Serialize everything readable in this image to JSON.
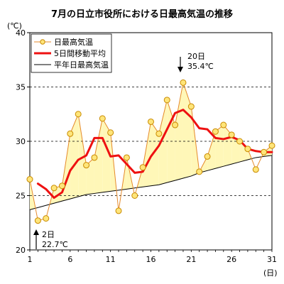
{
  "chart_data": {
    "type": "line",
    "title": "7月の日立市役所における日最高気温の推移",
    "ylabel": "(℃)",
    "xlabel": "(日)",
    "ylim": [
      20,
      40
    ],
    "xlim": [
      1,
      31
    ],
    "yticks": [
      20,
      25,
      30,
      35,
      40
    ],
    "xticks": [
      1,
      6,
      11,
      16,
      21,
      26,
      31
    ],
    "gridlines": "dashed horizontal at 25, 30, 35",
    "legend_position": "top-left",
    "colors": {
      "daily_line": "#e58a2b",
      "daily_marker_fill": "#ffe57a",
      "daily_marker_edge": "#c88a00",
      "moving_avg": "#ee1111",
      "normal": "#000000",
      "fill": "#fff7b8"
    },
    "x": [
      1,
      2,
      3,
      4,
      5,
      6,
      7,
      8,
      9,
      10,
      11,
      12,
      13,
      14,
      15,
      16,
      17,
      18,
      19,
      20,
      21,
      22,
      23,
      24,
      25,
      26,
      27,
      28,
      29,
      30,
      31
    ],
    "series": [
      {
        "name": "日最高気温",
        "values": [
          26.5,
          22.7,
          22.9,
          25.7,
          25.9,
          30.7,
          32.5,
          27.8,
          28.5,
          32.1,
          30.8,
          23.6,
          28.5,
          25.0,
          27.6,
          31.8,
          30.7,
          33.8,
          31.5,
          35.4,
          33.2,
          27.2,
          28.6,
          30.9,
          31.5,
          30.6,
          30.0,
          29.3,
          27.4,
          29.0,
          29.6
        ]
      },
      {
        "name": "5日間移動平均",
        "values": [
          null,
          26.1,
          25.6,
          24.8,
          25.3,
          27.3,
          28.3,
          28.7,
          30.3,
          30.3,
          28.6,
          28.7,
          27.9,
          27.1,
          27.2,
          28.6,
          29.6,
          31.1,
          32.6,
          32.9,
          32.2,
          31.2,
          31.1,
          30.3,
          30.2,
          30.4,
          30.1,
          29.3,
          29.1,
          29.0,
          29.0
        ]
      },
      {
        "name": "平年日最高気温",
        "values": [
          23.7,
          23.9,
          24.1,
          24.3,
          24.5,
          24.7,
          24.9,
          25.1,
          25.2,
          25.3,
          25.4,
          25.5,
          25.6,
          25.7,
          25.8,
          25.9,
          26.0,
          26.2,
          26.4,
          26.6,
          26.8,
          27.1,
          27.3,
          27.5,
          27.7,
          27.9,
          28.1,
          28.3,
          28.5,
          28.6,
          28.7
        ]
      }
    ],
    "annotations": [
      {
        "day_label": "20日",
        "value_label": "35.4℃",
        "x": 20,
        "y": 35.4
      },
      {
        "day_label": "2日",
        "value_label": "22.7℃",
        "x": 2,
        "y": 22.7
      }
    ]
  }
}
